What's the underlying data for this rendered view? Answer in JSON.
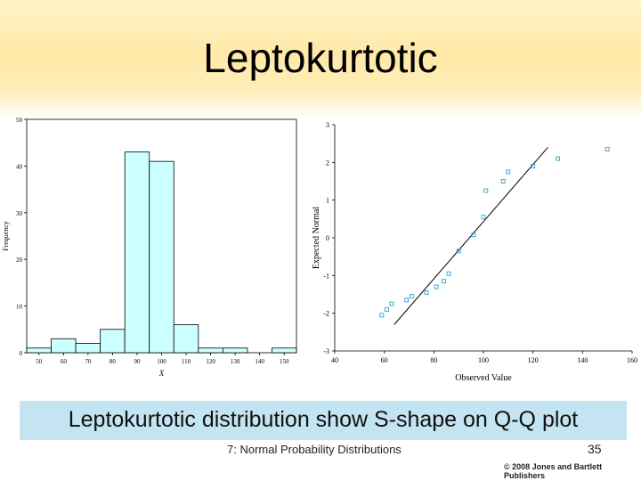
{
  "slide": {
    "title": "Leptokurtotic",
    "caption": "Leptokurtotic distribution show S-shape on Q-Q plot",
    "footer": "7: Normal Probability Distributions",
    "page_number": "35",
    "copyright": "© 2008 Jones and Bartlett Publishers"
  },
  "colors": {
    "header_top": "#fff3c8",
    "bar_fill": "#ccffff",
    "marker": "#2aa3d6",
    "caption_bg": "#c3e4f0"
  },
  "chart_data": [
    {
      "type": "bar",
      "title": "",
      "xlabel": "X",
      "ylabel": "Frequency",
      "categories": [
        "50",
        "60",
        "70",
        "80",
        "90",
        "100",
        "110",
        "120",
        "130",
        "140",
        "150"
      ],
      "values": [
        1,
        3,
        2,
        5,
        43,
        41,
        6,
        1,
        1,
        0,
        1
      ],
      "ylim": [
        0,
        50
      ],
      "yticks": [
        0,
        10,
        20,
        30,
        40,
        50
      ],
      "grid": false
    },
    {
      "type": "scatter",
      "title": "",
      "xlabel": "Observed Value",
      "ylabel": "Expected Normal",
      "xlim": [
        40,
        160
      ],
      "ylim": [
        -3,
        3
      ],
      "xticks": [
        40,
        60,
        80,
        100,
        120,
        140,
        160
      ],
      "yticks": [
        -3,
        -2,
        -1,
        0,
        1,
        2,
        3
      ],
      "points": [
        {
          "x": 59,
          "y": -2.05
        },
        {
          "x": 61,
          "y": -1.9
        },
        {
          "x": 63,
          "y": -1.75
        },
        {
          "x": 69,
          "y": -1.65
        },
        {
          "x": 71,
          "y": -1.55
        },
        {
          "x": 77,
          "y": -1.45
        },
        {
          "x": 81,
          "y": -1.3
        },
        {
          "x": 84,
          "y": -1.15
        },
        {
          "x": 86,
          "y": -0.95
        },
        {
          "x": 90,
          "y": -0.35
        },
        {
          "x": 96,
          "y": 0.08
        },
        {
          "x": 100,
          "y": 0.55
        },
        {
          "x": 101,
          "y": 1.25
        },
        {
          "x": 108,
          "y": 1.5
        },
        {
          "x": 110,
          "y": 1.75
        },
        {
          "x": 120,
          "y": 1.9
        },
        {
          "x": 130,
          "y": 2.1
        },
        {
          "x": 150,
          "y": 2.35
        }
      ],
      "reference_line": {
        "x": [
          64,
          126
        ],
        "y": [
          -2.3,
          2.4
        ]
      },
      "grid": false
    }
  ]
}
